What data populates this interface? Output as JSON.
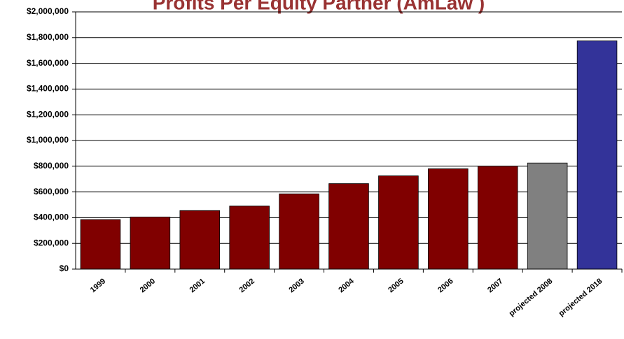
{
  "chart_data": {
    "type": "bar",
    "title": "Profits Per Equity Partner (AmLaw )",
    "categories": [
      "1999",
      "2000",
      "2001",
      "2002",
      "2003",
      "2004",
      "2005",
      "2006",
      "2007",
      "projected 2008",
      "projected 2018"
    ],
    "values": [
      385000,
      405000,
      455000,
      490000,
      585000,
      665000,
      725000,
      780000,
      800000,
      825000,
      1775000
    ],
    "colors": [
      "#800000",
      "#800000",
      "#800000",
      "#800000",
      "#800000",
      "#800000",
      "#800000",
      "#800000",
      "#800000",
      "#808080",
      "#333399"
    ],
    "ylim": [
      0,
      2000000
    ],
    "yticks": [
      {
        "value": 0,
        "label": "$0"
      },
      {
        "value": 200000,
        "label": "$200,000"
      },
      {
        "value": 400000,
        "label": "$400,000"
      },
      {
        "value": 600000,
        "label": "$600,000"
      },
      {
        "value": 800000,
        "label": "$800,000"
      },
      {
        "value": 1000000,
        "label": "$1,000,000"
      },
      {
        "value": 1200000,
        "label": "$1,200,000"
      },
      {
        "value": 1400000,
        "label": "$1,400,000"
      },
      {
        "value": 1600000,
        "label": "$1,600,000"
      },
      {
        "value": 1800000,
        "label": "$1,800,000"
      },
      {
        "value": 2000000,
        "label": "$2,000,000"
      }
    ],
    "grid": true
  }
}
